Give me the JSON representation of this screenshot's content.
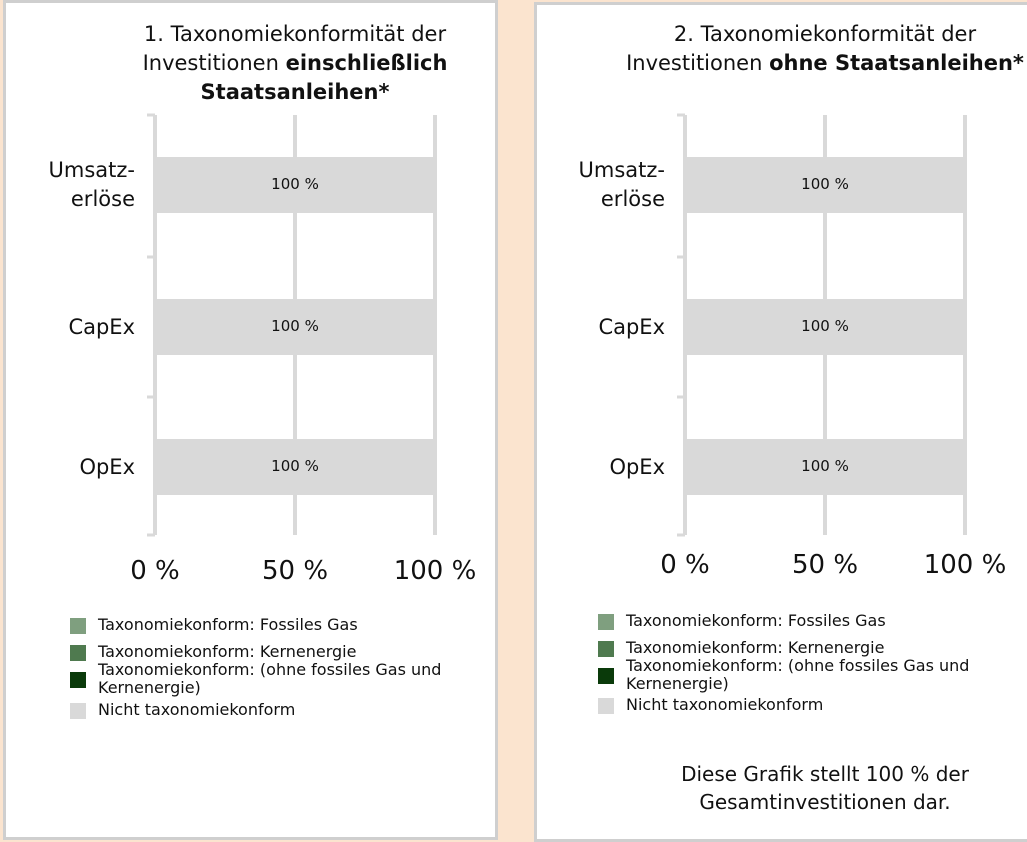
{
  "chart_data": [
    {
      "type": "stacked_bar_horizontal",
      "title": "1. Taxonomiekonformität der Investitionen",
      "title_bold": "einschließlich Staatsanleihen*",
      "categories": [
        "Umsatz-\nerlöse",
        "CapEx",
        "OpEx"
      ],
      "series": [
        {
          "name": "Taxonomiekonform: Fossiles Gas",
          "color": "#7f9f7f",
          "values": [
            0,
            0,
            0
          ]
        },
        {
          "name": "Taxonomiekonform: Kernenergie",
          "color": "#4f7a4f",
          "values": [
            0,
            0,
            0
          ]
        },
        {
          "name": "Taxonomiekonform: (ohne fossiles Gas und Kernenergie)",
          "color": "#0a3a0a",
          "values": [
            0,
            0,
            0
          ]
        },
        {
          "name": "Nicht taxonomiekonform",
          "color": "#d9d9d9",
          "values": [
            100,
            100,
            100
          ],
          "value_labels": [
            "100 %",
            "100 %",
            "100 %"
          ]
        }
      ],
      "xlim": [
        0,
        100
      ],
      "xticks": [
        {
          "value": 0,
          "label": "0 %"
        },
        {
          "value": 50,
          "label": "50 %"
        },
        {
          "value": 100,
          "label": "100 %"
        }
      ],
      "grid": true
    },
    {
      "type": "stacked_bar_horizontal",
      "title": "2. Taxonomiekonformität der Investitionen",
      "title_bold": "ohne Staatsanleihen*",
      "categories": [
        "Umsatz-\nerlöse",
        "CapEx",
        "OpEx"
      ],
      "series": [
        {
          "name": "Taxonomiekonform: Fossiles Gas",
          "color": "#7f9f7f",
          "values": [
            0,
            0,
            0
          ]
        },
        {
          "name": "Taxonomiekonform: Kernenergie",
          "color": "#4f7a4f",
          "values": [
            0,
            0,
            0
          ]
        },
        {
          "name": "Taxonomiekonform: (ohne fossiles Gas und Kernenergie)",
          "color": "#0a3a0a",
          "values": [
            0,
            0,
            0
          ]
        },
        {
          "name": "Nicht taxonomiekonform",
          "color": "#d9d9d9",
          "values": [
            100,
            100,
            100
          ],
          "value_labels": [
            "100 %",
            "100 %",
            "100 %"
          ]
        }
      ],
      "xlim": [
        0,
        100
      ],
      "xticks": [
        {
          "value": 0,
          "label": "0 %"
        },
        {
          "value": 50,
          "label": "50 %"
        },
        {
          "value": 100,
          "label": "100 %"
        }
      ],
      "grid": true,
      "note": "Diese Grafik stellt 100 % der Gesamtinvestitionen dar."
    }
  ]
}
